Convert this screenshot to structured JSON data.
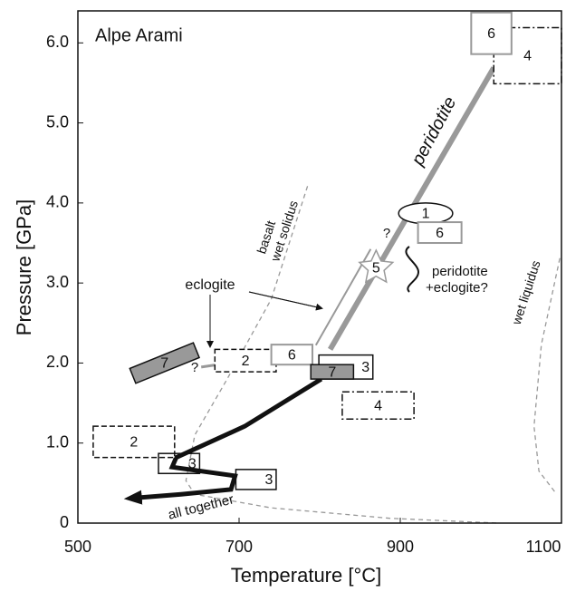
{
  "chart_data": {
    "type": "pt-diagram",
    "title": "Alpe Arami",
    "x_label": "Temperature [°C]",
    "y_label": "Pressure [GPa]",
    "xlim": [
      500,
      1100
    ],
    "ylim": [
      0,
      6.4
    ],
    "xticks": [
      500,
      700,
      900,
      1100
    ],
    "yticks": [
      0,
      {
        "value": 1,
        "label": "1.0"
      },
      {
        "value": 2,
        "label": "2.0"
      },
      {
        "value": 3,
        "label": "3.0"
      },
      {
        "value": 4,
        "label": "4.0"
      },
      {
        "value": 5,
        "label": "5.0"
      },
      {
        "value": 6,
        "label": "6.0"
      }
    ],
    "annotations": [
      "peridotite",
      "eclogite",
      "basalt",
      "wet solidus",
      "wet liquidus",
      "peridotite",
      "+eclogite?",
      "all together",
      "?",
      "?"
    ],
    "curves": [
      {
        "style": "dashed",
        "t": [
          785,
          740,
          684,
          645,
          634,
          645,
          740,
          887,
          1021
        ],
        "p": [
          4.21,
          2.8,
          1.78,
          1.1,
          0.53,
          0.36,
          0.19,
          0.06,
          0
        ]
      },
      {
        "style": "dashed",
        "t": [
          1098,
          1075,
          1066,
          1072,
          1094
        ],
        "p": [
          3.31,
          2.23,
          1.21,
          0.65,
          0.36
        ]
      },
      {
        "style": "thick-gray",
        "t": [
          813,
          1016
        ],
        "p": [
          2.17,
          5.69
        ]
      },
      {
        "style": "thin-gray",
        "t": [
          802,
          870
        ],
        "p": [
          2.2,
          3.4
        ]
      },
      {
        "style": "gray-arrow",
        "t": [
          653,
          740
        ],
        "p": [
          1.95,
          2.08
        ]
      },
      {
        "style": "black-arrow",
        "t": [
          802,
          707,
          622,
          617,
          695,
          690,
          628,
          566
        ],
        "p": [
          1.8,
          1.21,
          0.82,
          0.7,
          0.59,
          0.42,
          0.36,
          0.31
        ]
      }
    ],
    "boxes": [
      {
        "label": "4",
        "style": "dashdot",
        "t": [
          1016,
          1100
        ],
        "p": [
          5.49,
          6.19
        ]
      },
      {
        "label": "6",
        "style": "gray",
        "t": [
          988,
          1038
        ],
        "p": [
          5.86,
          6.38
        ]
      },
      {
        "label": "1",
        "style": "ellipse",
        "t": [
          898,
          965
        ],
        "p": [
          3.74,
          4.0
        ]
      },
      {
        "label": "6",
        "style": "gray",
        "t": [
          922,
          976
        ],
        "p": [
          3.5,
          3.76
        ]
      },
      {
        "label": "5",
        "style": "star",
        "t": [
          855,
          885
        ],
        "p": [
          3.02,
          3.36
        ]
      },
      {
        "label": "2",
        "style": "dashed",
        "t": [
          670,
          746
        ],
        "p": [
          1.89,
          2.17
        ]
      },
      {
        "label": "6",
        "style": "gray",
        "t": [
          740,
          791
        ],
        "p": [
          1.98,
          2.23
        ]
      },
      {
        "label": "7",
        "style": "tilted",
        "t": [
          565,
          650
        ],
        "p": [
          1.9,
          2.1
        ]
      },
      {
        "label": "3",
        "style": "solid",
        "t": [
          799,
          866
        ],
        "p": [
          1.8,
          2.1
        ]
      },
      {
        "label": "7",
        "style": "filled",
        "t": [
          789,
          842
        ],
        "p": [
          1.8,
          1.98
        ]
      },
      {
        "label": "4",
        "style": "dashdot",
        "t": [
          828,
          917
        ],
        "p": [
          1.3,
          1.64
        ]
      },
      {
        "label": "2",
        "style": "dashed",
        "t": [
          519,
          620
        ],
        "p": [
          0.82,
          1.21
        ]
      },
      {
        "label": "3",
        "style": "solid",
        "t": [
          600,
          651
        ],
        "p": [
          0.62,
          0.87
        ]
      },
      {
        "label": "3",
        "style": "solid",
        "t": [
          696,
          746
        ],
        "p": [
          0.42,
          0.67
        ]
      }
    ]
  }
}
